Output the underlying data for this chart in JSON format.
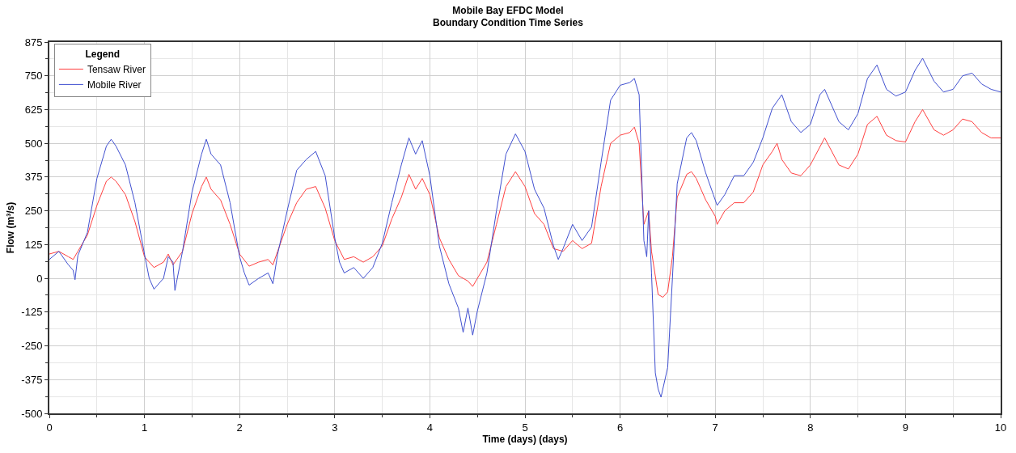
{
  "chart_data": {
    "type": "line",
    "title": "Mobile Bay EFDC Model\nBoundary Condition Time Series",
    "xlabel": "Time (days) (days)",
    "ylabel": "Flow (m³/s)",
    "legend_title": "Legend",
    "legend": "top left",
    "grid": true,
    "marker": "none",
    "line_style": "solid",
    "xlim": [
      0,
      10
    ],
    "xticks": [
      0,
      1,
      2,
      3,
      4,
      5,
      6,
      7,
      8,
      9,
      10
    ],
    "ylim": [
      -500,
      875
    ],
    "yticks": [
      -500,
      -375,
      -250,
      -125,
      0,
      125,
      250,
      375,
      500,
      625,
      750,
      875
    ],
    "series": [
      {
        "name": "Tensaw River",
        "color": "#ff4040",
        "x": [
          0.0,
          0.1,
          0.2,
          0.25,
          0.3,
          0.4,
          0.5,
          0.6,
          0.65,
          0.7,
          0.8,
          0.9,
          1.0,
          1.1,
          1.2,
          1.25,
          1.3,
          1.4,
          1.5,
          1.6,
          1.65,
          1.7,
          1.8,
          1.9,
          2.0,
          2.1,
          2.2,
          2.3,
          2.35,
          2.4,
          2.5,
          2.6,
          2.7,
          2.8,
          2.9,
          3.0,
          3.1,
          3.2,
          3.3,
          3.4,
          3.5,
          3.6,
          3.7,
          3.78,
          3.85,
          3.92,
          4.0,
          4.1,
          4.2,
          4.3,
          4.4,
          4.45,
          4.5,
          4.6,
          4.7,
          4.8,
          4.9,
          5.0,
          5.1,
          5.2,
          5.3,
          5.4,
          5.5,
          5.6,
          5.7,
          5.8,
          5.9,
          6.0,
          6.1,
          6.15,
          6.2,
          6.25,
          6.3,
          6.33,
          6.4,
          6.45,
          6.5,
          6.55,
          6.6,
          6.7,
          6.75,
          6.8,
          6.9,
          7.0,
          7.02,
          7.1,
          7.2,
          7.3,
          7.4,
          7.5,
          7.6,
          7.65,
          7.7,
          7.8,
          7.9,
          8.0,
          8.15,
          8.3,
          8.4,
          8.5,
          8.6,
          8.7,
          8.8,
          8.9,
          9.0,
          9.1,
          9.18,
          9.3,
          9.4,
          9.5,
          9.6,
          9.7,
          9.8,
          9.9,
          10.0
        ],
        "values": [
          90,
          100,
          80,
          70,
          100,
          160,
          270,
          360,
          375,
          360,
          310,
          210,
          80,
          40,
          60,
          90,
          50,
          100,
          240,
          340,
          375,
          330,
          290,
          200,
          90,
          45,
          60,
          70,
          50,
          100,
          200,
          280,
          330,
          340,
          260,
          140,
          70,
          80,
          60,
          80,
          120,
          220,
          300,
          385,
          330,
          370,
          310,
          150,
          70,
          10,
          -10,
          -30,
          0,
          60,
          200,
          340,
          395,
          340,
          240,
          200,
          110,
          100,
          140,
          110,
          130,
          340,
          500,
          530,
          540,
          560,
          500,
          200,
          250,
          100,
          -60,
          -70,
          -50,
          80,
          300,
          385,
          395,
          370,
          290,
          230,
          200,
          250,
          280,
          280,
          320,
          420,
          470,
          500,
          440,
          390,
          380,
          420,
          520,
          420,
          405,
          460,
          570,
          600,
          530,
          510,
          505,
          580,
          625,
          550,
          530,
          550,
          590,
          580,
          540,
          520,
          520
        ]
      },
      {
        "name": "Mobile River",
        "color": "#4050d0",
        "x": [
          0.0,
          0.1,
          0.2,
          0.25,
          0.27,
          0.3,
          0.4,
          0.5,
          0.6,
          0.65,
          0.7,
          0.8,
          0.9,
          1.0,
          1.05,
          1.1,
          1.2,
          1.25,
          1.3,
          1.32,
          1.4,
          1.5,
          1.6,
          1.65,
          1.7,
          1.8,
          1.9,
          2.0,
          2.05,
          2.1,
          2.2,
          2.3,
          2.35,
          2.4,
          2.5,
          2.6,
          2.7,
          2.8,
          2.9,
          3.0,
          3.05,
          3.1,
          3.2,
          3.3,
          3.4,
          3.5,
          3.6,
          3.7,
          3.78,
          3.85,
          3.92,
          4.0,
          4.1,
          4.2,
          4.3,
          4.35,
          4.4,
          4.45,
          4.5,
          4.6,
          4.7,
          4.8,
          4.9,
          5.0,
          5.1,
          5.2,
          5.3,
          5.35,
          5.4,
          5.5,
          5.6,
          5.7,
          5.8,
          5.9,
          6.0,
          6.1,
          6.15,
          6.2,
          6.25,
          6.28,
          6.3,
          6.33,
          6.37,
          6.4,
          6.43,
          6.5,
          6.55,
          6.6,
          6.7,
          6.75,
          6.8,
          6.9,
          6.98,
          7.02,
          7.1,
          7.2,
          7.3,
          7.4,
          7.5,
          7.6,
          7.7,
          7.8,
          7.9,
          8.0,
          8.1,
          8.15,
          8.3,
          8.4,
          8.5,
          8.6,
          8.7,
          8.8,
          8.9,
          9.0,
          9.1,
          9.18,
          9.3,
          9.4,
          9.5,
          9.6,
          9.7,
          9.8,
          9.9,
          10.0
        ],
        "values": [
          70,
          100,
          50,
          30,
          -5,
          85,
          170,
          370,
          490,
          515,
          490,
          420,
          280,
          90,
          0,
          -40,
          0,
          80,
          60,
          -45,
          100,
          320,
          460,
          515,
          460,
          420,
          280,
          80,
          20,
          -25,
          0,
          20,
          -20,
          90,
          250,
          400,
          440,
          470,
          380,
          150,
          60,
          20,
          40,
          0,
          40,
          130,
          280,
          420,
          520,
          460,
          510,
          380,
          120,
          -20,
          -110,
          -200,
          -110,
          -210,
          -120,
          20,
          250,
          460,
          535,
          470,
          330,
          260,
          120,
          70,
          110,
          200,
          140,
          190,
          430,
          660,
          715,
          725,
          740,
          680,
          140,
          80,
          250,
          20,
          -350,
          -410,
          -440,
          -330,
          0,
          350,
          520,
          540,
          510,
          390,
          310,
          270,
          310,
          380,
          380,
          430,
          520,
          630,
          680,
          580,
          540,
          570,
          680,
          700,
          580,
          550,
          610,
          740,
          790,
          700,
          675,
          690,
          770,
          815,
          730,
          690,
          700,
          750,
          760,
          720,
          700,
          690
        ]
      }
    ]
  }
}
